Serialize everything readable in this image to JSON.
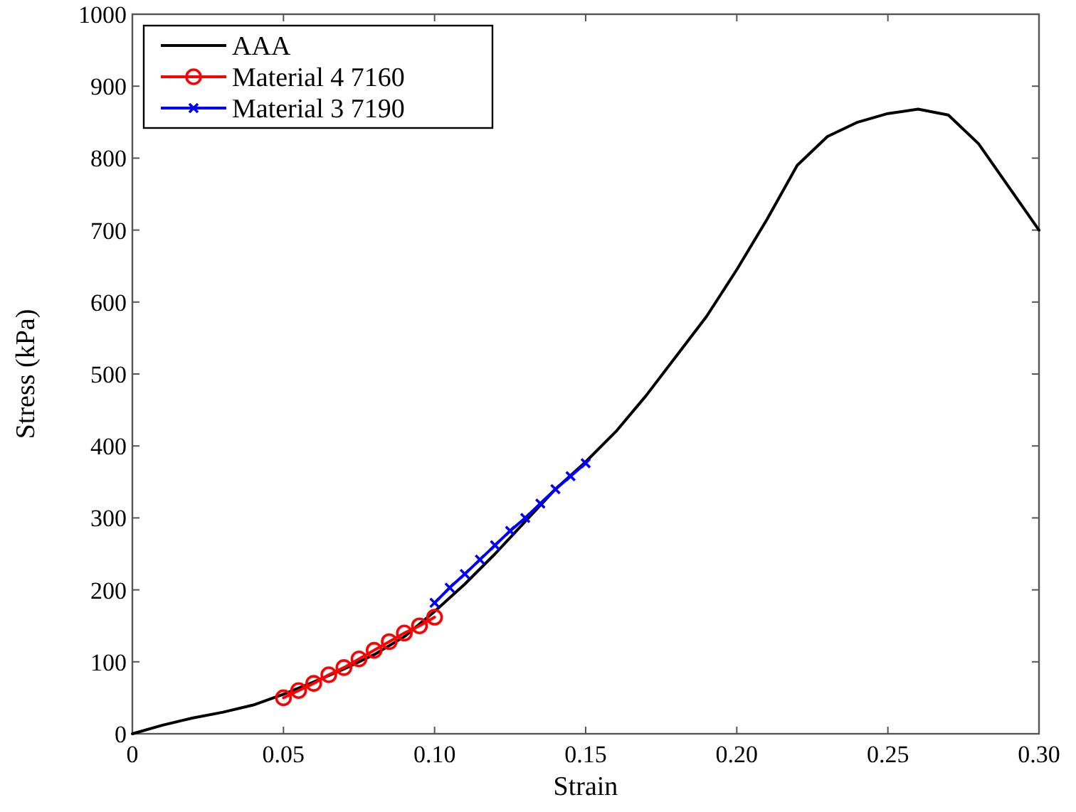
{
  "chart_data": {
    "type": "line",
    "xlabel": "Strain",
    "ylabel": "Stress (kPa)",
    "xlim": [
      0,
      0.3
    ],
    "ylim": [
      0,
      1000
    ],
    "xticks": [
      0,
      {
        "value": 0.05,
        "label": "0.05"
      },
      {
        "value": 0.1,
        "label": "0.10"
      },
      {
        "value": 0.15,
        "label": "0.15"
      },
      {
        "value": 0.2,
        "label": "0.20"
      },
      {
        "value": 0.25,
        "label": "0.25"
      },
      {
        "value": 0.3,
        "label": "0.30"
      }
    ],
    "yticks": [
      0,
      100,
      200,
      300,
      400,
      500,
      600,
      700,
      800,
      900,
      1000
    ],
    "grid": false,
    "legend": "top left",
    "line_style": "solid",
    "series": [
      {
        "name": "AAA",
        "color": "#000000",
        "marker": "none",
        "x": [
          0,
          0.01,
          0.02,
          0.03,
          0.04,
          0.05,
          0.06,
          0.07,
          0.08,
          0.09,
          0.1,
          0.11,
          0.12,
          0.13,
          0.14,
          0.15,
          0.16,
          0.17,
          0.18,
          0.19,
          0.2,
          0.21,
          0.22,
          0.23,
          0.24,
          0.25,
          0.26,
          0.27,
          0.28,
          0.29,
          0.3
        ],
        "values": [
          0,
          12,
          22,
          30,
          40,
          55,
          72,
          90,
          110,
          135,
          170,
          208,
          250,
          295,
          340,
          378,
          420,
          470,
          525,
          580,
          645,
          715,
          790,
          830,
          850,
          862,
          868,
          860,
          820,
          760,
          700
        ]
      },
      {
        "name": "Material 4 7160",
        "color": "#ff0000",
        "marker": "circle",
        "x": [
          0.05,
          0.055,
          0.06,
          0.065,
          0.07,
          0.075,
          0.08,
          0.085,
          0.09,
          0.095,
          0.1
        ],
        "values": [
          50,
          60,
          70,
          82,
          92,
          104,
          116,
          128,
          140,
          150,
          162
        ]
      },
      {
        "name": "Material 3 7190",
        "color": "#0000ff",
        "marker": "cross",
        "x": [
          0.1,
          0.105,
          0.11,
          0.115,
          0.12,
          0.125,
          0.13,
          0.135,
          0.14,
          0.145,
          0.15
        ],
        "values": [
          182,
          203,
          222,
          242,
          262,
          282,
          300,
          320,
          340,
          358,
          376
        ]
      }
    ]
  }
}
